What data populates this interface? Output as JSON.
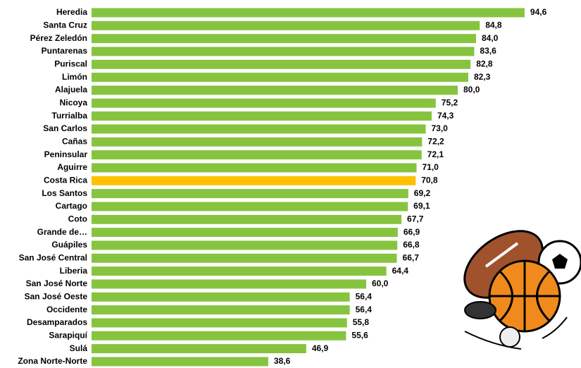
{
  "chart_data": {
    "type": "bar",
    "orientation": "horizontal",
    "categories": [
      "Heredia",
      "Santa Cruz",
      "Pérez Zeledón",
      "Puntarenas",
      "Puriscal",
      "Limón",
      "Alajuela",
      "Nicoya",
      "Turrialba",
      "San Carlos",
      "Cañas",
      "Peninsular",
      "Aguirre",
      "Costa Rica",
      "Los Santos",
      "Cartago",
      "Coto",
      "Grande de…",
      "Guápiles",
      "San José Central",
      "Liberia",
      "San José Norte",
      "San José Oeste",
      "Occidente",
      "Desamparados",
      "Sarapiquí",
      "Sulá",
      "Zona Norte-Norte"
    ],
    "values": [
      94.6,
      84.8,
      84.0,
      83.6,
      82.8,
      82.3,
      80.0,
      75.2,
      74.3,
      73.0,
      72.2,
      72.1,
      71.0,
      70.8,
      69.2,
      69.1,
      67.7,
      66.9,
      66.8,
      66.7,
      64.4,
      60.0,
      56.4,
      56.4,
      55.8,
      55.6,
      46.9,
      38.6
    ],
    "value_labels": [
      "94,6",
      "84,8",
      "84,0",
      "83,6",
      "82,8",
      "82,3",
      "80,0",
      "75,2",
      "74,3",
      "73,0",
      "72,2",
      "72,1",
      "71,0",
      "70,8",
      "69,2",
      "69,1",
      "67,7",
      "66,9",
      "66,8",
      "66,7",
      "64,4",
      "60,0",
      "56,4",
      "56,4",
      "55,8",
      "55,6",
      "46,9",
      "38,6"
    ],
    "colors": [
      "#86c440",
      "#86c440",
      "#86c440",
      "#86c440",
      "#86c440",
      "#86c440",
      "#86c440",
      "#86c440",
      "#86c440",
      "#86c440",
      "#86c440",
      "#86c440",
      "#86c440",
      "#ffc000",
      "#86c440",
      "#86c440",
      "#86c440",
      "#86c440",
      "#86c440",
      "#86c440",
      "#86c440",
      "#86c440",
      "#86c440",
      "#86c440",
      "#86c440",
      "#86c440",
      "#86c440",
      "#86c440"
    ]
  }
}
